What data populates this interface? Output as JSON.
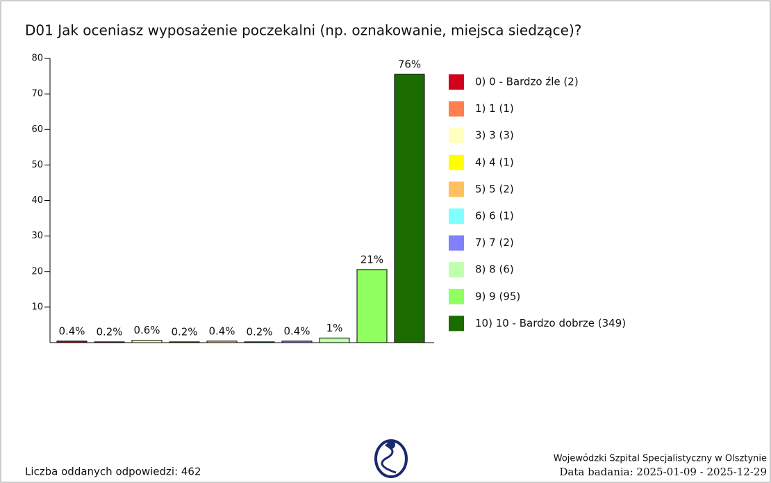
{
  "chart_data": {
    "type": "bar",
    "title": "D01 Jak oceniasz wyposażenie poczekalni (np. oznakowanie, miejsca siedzące)?",
    "categories": [
      "0) 0 - Bardzo źle (2)",
      "1) 1 (1)",
      "3) 3 (3)",
      "4) 4 (1)",
      "5) 5 (2)",
      "6) 6 (1)",
      "7) 7 (2)",
      "8) 8 (6)",
      "9) 9 (95)",
      "10) 10 - Bardzo dobrze (349)"
    ],
    "values": [
      0.43,
      0.22,
      0.65,
      0.22,
      0.43,
      0.22,
      0.43,
      1.3,
      20.56,
      75.54
    ],
    "value_labels": [
      "0.4%",
      "0.2%",
      "0.6%",
      "0.2%",
      "0.4%",
      "0.2%",
      "0.4%",
      "1%",
      "21%",
      "76%"
    ],
    "colors": [
      "#d0021b",
      "#ff7f50",
      "#ffffc0",
      "#ffff00",
      "#ffc060",
      "#80ffff",
      "#8080ff",
      "#c0ffb0",
      "#90ff60",
      "#1a6b00"
    ],
    "ylim": [
      0,
      80
    ],
    "yticks": [
      10,
      20,
      30,
      40,
      50,
      60,
      70,
      80
    ],
    "legend": "right",
    "footer": {
      "responses": "Liczba oddanych odpowiedzi: 462",
      "institution": "Wojewódzki Szpital Specjalistyczny w Olsztynie",
      "date": "Data badania: 2025-01-09 - 2025-12-29"
    }
  }
}
